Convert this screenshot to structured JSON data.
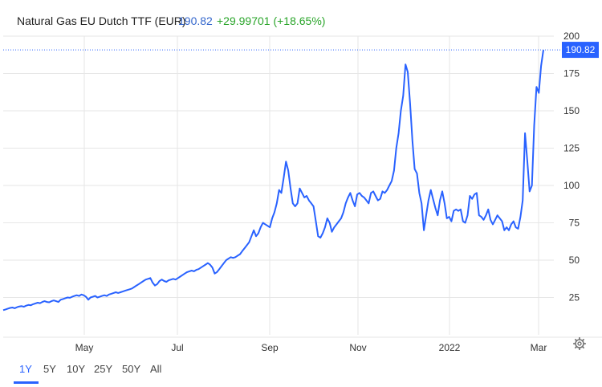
{
  "header": {
    "title": "Natural Gas EU Dutch TTF (EUR)",
    "price": "190.82",
    "change": "+29.99701 (+18.65%)"
  },
  "colors": {
    "line": "#2962ff",
    "price_text": "#3366cc",
    "change_text": "#2aa52a",
    "grid": "#e6e6e6",
    "axis_text": "#333333",
    "price_tag_bg": "#2962ff"
  },
  "range_buttons": [
    {
      "label": "1Y",
      "active": true
    },
    {
      "label": "5Y",
      "active": false
    },
    {
      "label": "10Y",
      "active": false
    },
    {
      "label": "25Y",
      "active": false
    },
    {
      "label": "50Y",
      "active": false
    },
    {
      "label": "All",
      "active": false
    }
  ],
  "icons": {
    "settings": "gear-icon"
  },
  "chart_data": {
    "type": "line",
    "title": "Natural Gas EU Dutch TTF (EUR)",
    "xlabel": "",
    "ylabel": "",
    "x_tick_labels": [
      "May",
      "Jul",
      "Sep",
      "Nov",
      "2022",
      "Mar"
    ],
    "y_ticks": [
      25,
      50,
      75,
      100,
      125,
      150,
      175,
      200
    ],
    "ylim": [
      0,
      200
    ],
    "grid": true,
    "last_value_label": "190.82",
    "series": [
      {
        "values": [
          16.5,
          17,
          17.5,
          18,
          18.3,
          17.8,
          18.5,
          19,
          19.2,
          18.8,
          19.5,
          20,
          19.8,
          20.5,
          21,
          21.5,
          21.2,
          22,
          22.5,
          22,
          21.8,
          22.5,
          23,
          22.5,
          22,
          23.5,
          24,
          24.5,
          25,
          24.8,
          25.5,
          26,
          26.5,
          26,
          27,
          26.5,
          25.5,
          23.5,
          25,
          25.5,
          26,
          25,
          25.5,
          26,
          26.5,
          26,
          27,
          27.5,
          28,
          28.5,
          28,
          28.5,
          29,
          29.5,
          30,
          30.5,
          31,
          32,
          33,
          34,
          35,
          36,
          37,
          37.5,
          38,
          35,
          33,
          34,
          36,
          37,
          36,
          35.5,
          36.5,
          37,
          37.5,
          37,
          38,
          39,
          40,
          41,
          42,
          42.5,
          43,
          42.5,
          43.5,
          44,
          45,
          46,
          47,
          48,
          47,
          45,
          41,
          42,
          44,
          46,
          48,
          50,
          51,
          52,
          51.5,
          52,
          53,
          54,
          56,
          58,
          60,
          62,
          66,
          70,
          66,
          68,
          72,
          75,
          74,
          73,
          72,
          78,
          82,
          88,
          97,
          95,
          105,
          116,
          110,
          98,
          88,
          86,
          88,
          98,
          95,
          92,
          93,
          90,
          88,
          86,
          76,
          66,
          65,
          68,
          72,
          78,
          75,
          69,
          72,
          74,
          76,
          78,
          82,
          88,
          92,
          95,
          90,
          86,
          94,
          95,
          93,
          92,
          90,
          88,
          95,
          96,
          93,
          90,
          91,
          96,
          95,
          97,
          100,
          103,
          110,
          125,
          135,
          150,
          160,
          181,
          176,
          155,
          130,
          111,
          108,
          95,
          88,
          70,
          80,
          90,
          97,
          91,
          85,
          80,
          90,
          96,
          88,
          78,
          79,
          76,
          83,
          84,
          83,
          84,
          76,
          75,
          80,
          93,
          91,
          94,
          95,
          80,
          79,
          77,
          80,
          84,
          77,
          74,
          77,
          80,
          78,
          76,
          70,
          72,
          70,
          74,
          76,
          72,
          71,
          79,
          90,
          135,
          116,
          96,
          100,
          140,
          166,
          162,
          180,
          190.82
        ]
      }
    ]
  }
}
